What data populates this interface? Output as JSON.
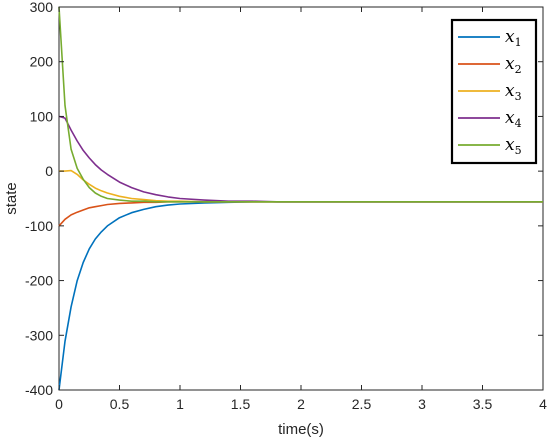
{
  "chart_data": {
    "type": "line",
    "title": "",
    "xlabel": "time(s)",
    "ylabel": "state",
    "xlim": [
      0,
      4
    ],
    "ylim": [
      -400,
      300
    ],
    "x_ticks": [
      0,
      0.5,
      1,
      1.5,
      2,
      2.5,
      3,
      3.5,
      4
    ],
    "x_tick_labels": [
      "0",
      "0.5",
      "1",
      "1.5",
      "2",
      "2.5",
      "3",
      "3.5",
      "4"
    ],
    "y_ticks": [
      300,
      200,
      100,
      0,
      -100,
      -200,
      -300,
      -400
    ],
    "y_tick_labels": [
      "300",
      "200",
      "100",
      "0",
      "-100",
      "-200",
      "-300",
      "-400"
    ],
    "grid": false,
    "legend_position": "top-right",
    "x": [
      0,
      0.05,
      0.1,
      0.15,
      0.2,
      0.25,
      0.3,
      0.35,
      0.4,
      0.5,
      0.6,
      0.7,
      0.8,
      0.9,
      1.0,
      1.2,
      1.4,
      1.6,
      1.8,
      2.0,
      2.5,
      3.0,
      3.5,
      4.0
    ],
    "series": [
      {
        "name": "x",
        "subscript": "1",
        "color": "#0072BD",
        "values": [
          -400,
          -311,
          -248,
          -200,
          -167,
          -142,
          -124,
          -111,
          -100,
          -85,
          -76,
          -70,
          -65,
          -62,
          -60,
          -58,
          -57,
          -56,
          -56,
          -56,
          -56,
          -56,
          -56,
          -56
        ]
      },
      {
        "name": "x",
        "subscript": "2",
        "color": "#D95319",
        "values": [
          -100,
          -88,
          -80,
          -75,
          -71,
          -67,
          -65,
          -63,
          -61,
          -59,
          -58,
          -57,
          -57,
          -56,
          -56,
          -56,
          -56,
          -56,
          -56,
          -56,
          -56,
          -56,
          -56,
          -56
        ]
      },
      {
        "name": "x",
        "subscript": "3",
        "color": "#EDB120",
        "values": [
          0,
          0,
          1,
          -6,
          -16,
          -24,
          -31,
          -36,
          -40,
          -46,
          -50,
          -52,
          -54,
          -55,
          -55,
          -56,
          -56,
          -56,
          -56,
          -56,
          -56,
          -56,
          -56,
          -56
        ]
      },
      {
        "name": "x",
        "subscript": "4",
        "color": "#7E2F8E",
        "values": [
          100,
          97,
          75,
          55,
          38,
          24,
          12,
          2,
          -6,
          -20,
          -30,
          -38,
          -43,
          -47,
          -50,
          -53,
          -55,
          -55,
          -56,
          -56,
          -56,
          -56,
          -56,
          -56
        ]
      },
      {
        "name": "x",
        "subscript": "5",
        "color": "#77AC30",
        "values": [
          300,
          120,
          40,
          5,
          -15,
          -30,
          -40,
          -46,
          -50,
          -53,
          -55,
          -55,
          -56,
          -56,
          -56,
          -56,
          -56,
          -56,
          -56,
          -56,
          -56,
          -56,
          -56,
          -56
        ]
      }
    ]
  }
}
